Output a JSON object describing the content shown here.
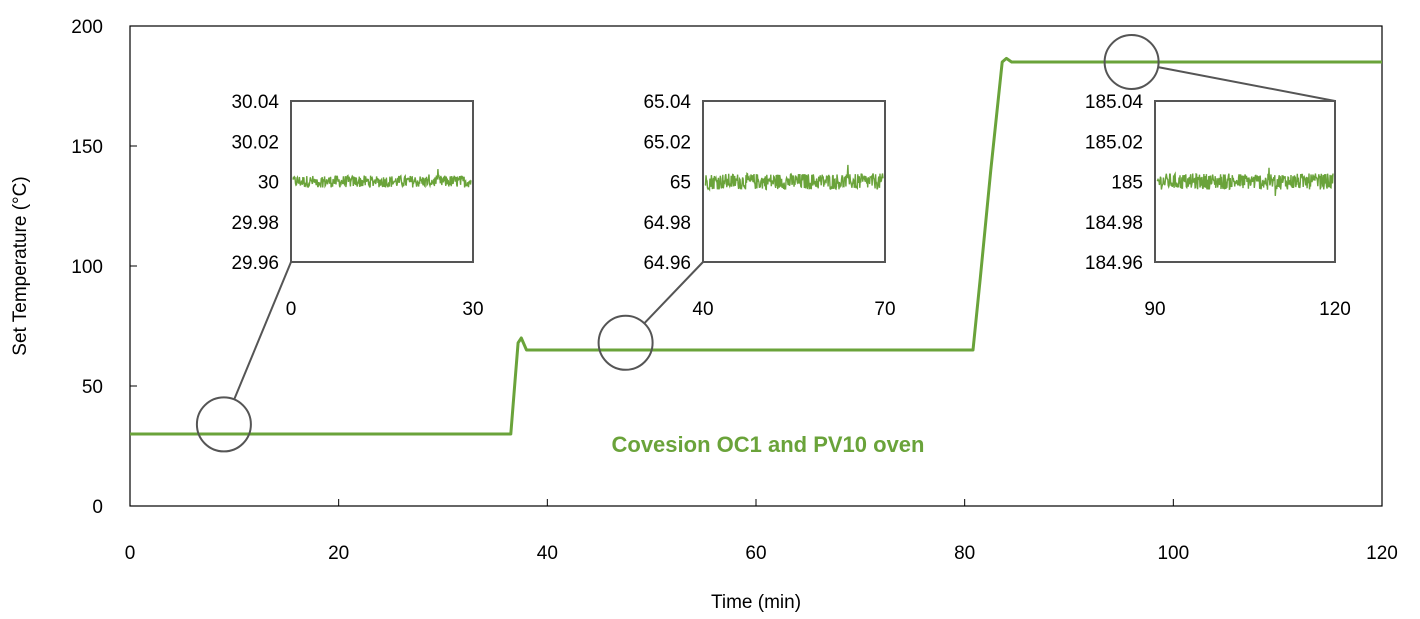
{
  "chart_data": {
    "type": "line",
    "title": "",
    "xlabel": "Time (min)",
    "ylabel": "Set Temperature (°C)",
    "xlim": [
      0,
      120
    ],
    "ylim": [
      0,
      200
    ],
    "xticks": [
      "0",
      "20",
      "40",
      "60",
      "80",
      "100",
      "120"
    ],
    "yticks": [
      "0",
      "50",
      "100",
      "150",
      "200"
    ],
    "grid": false,
    "legend": "none",
    "line_color": "#6aa33a",
    "annotation": "Covesion OC1 and PV10 oven",
    "series": [
      {
        "x": [
          0,
          36.5,
          36.9,
          37.2,
          37.5,
          38.0,
          80.8,
          81.5,
          82.5,
          83.6,
          84.0,
          84.5,
          120
        ],
        "y": [
          30,
          30,
          52,
          68,
          70,
          65,
          65,
          95,
          140,
          185,
          186.5,
          185,
          185
        ]
      }
    ],
    "insets": [
      {
        "xticks": [
          "0",
          "30"
        ],
        "yticks": [
          "30.04",
          "30.02",
          "30",
          "29.98",
          "29.96"
        ],
        "ylim": [
          29.96,
          30.04
        ],
        "center": 30,
        "noise_amplitude": 0.003,
        "callout_x": 9,
        "callout_y": 34
      },
      {
        "xticks": [
          "40",
          "70"
        ],
        "yticks": [
          "65.04",
          "65.02",
          "65",
          "64.98",
          "64.96"
        ],
        "ylim": [
          64.96,
          65.04
        ],
        "center": 65,
        "noise_amplitude": 0.004,
        "callout_x": 47.5,
        "callout_y": 68
      },
      {
        "xticks": [
          "90",
          "120"
        ],
        "yticks": [
          "185.04",
          "185.02",
          "185",
          "184.98",
          "184.96"
        ],
        "ylim": [
          184.96,
          185.04
        ],
        "center": 185,
        "noise_amplitude": 0.004,
        "callout_x": 96,
        "callout_y": 185
      }
    ]
  }
}
